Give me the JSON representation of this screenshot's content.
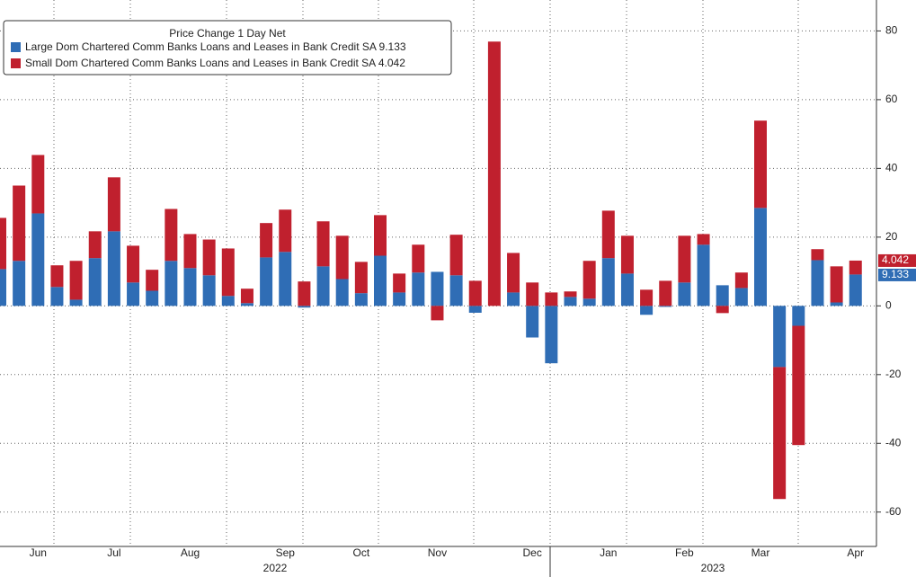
{
  "chart_data": {
    "type": "stacked_bar",
    "legend_title": "Price Change 1 Day Net",
    "categories": [
      null,
      null,
      "Jun",
      null,
      null,
      null,
      "Jul",
      null,
      null,
      null,
      "Aug",
      null,
      null,
      null,
      null,
      "Sep",
      null,
      null,
      null,
      "Oct",
      null,
      null,
      null,
      "Nov",
      null,
      null,
      null,
      null,
      "Dec",
      null,
      null,
      null,
      "Jan",
      null,
      null,
      null,
      "Feb",
      null,
      null,
      null,
      "Mar",
      null,
      null,
      null,
      null,
      "Apr"
    ],
    "years": [
      "2022",
      "2023"
    ],
    "series": [
      {
        "name": "Large Dom Chartered Comm Banks Loans and Leases in Bank Credit SA 9.133",
        "color": "#2f6db5",
        "values": [
          10.7,
          13.1,
          26.9,
          5.5,
          1.8,
          13.9,
          21.7,
          6.8,
          4.4,
          13.1,
          11.0,
          8.9,
          2.9,
          0.8,
          14.1,
          15.7,
          -0.5,
          11.5,
          7.8,
          3.7,
          14.6,
          3.9,
          9.7,
          9.9,
          8.9,
          -2.0,
          0,
          3.9,
          -9.2,
          -16.7,
          2.6,
          2.1,
          13.9,
          9.4,
          -2.6,
          -0.3,
          6.8,
          17.8,
          6.0,
          5.2,
          28.5,
          -17.8,
          -5.8,
          13.3,
          1.0,
          9.133
        ]
      },
      {
        "name": "Small Dom Chartered Comm Banks Loans and Leases in Bank Credit SA 4.042",
        "color": "#c0202e",
        "values": [
          14.9,
          21.9,
          17.0,
          6.3,
          11.3,
          7.8,
          15.7,
          10.7,
          6.1,
          15.1,
          9.9,
          10.4,
          13.8,
          4.2,
          10.0,
          12.3,
          7.1,
          13.1,
          12.6,
          9.1,
          11.8,
          5.5,
          8.1,
          -4.2,
          11.8,
          7.3,
          76.9,
          11.5,
          6.8,
          3.9,
          1.6,
          11.0,
          13.8,
          11.0,
          4.7,
          7.3,
          13.6,
          3.1,
          -2.1,
          4.5,
          25.4,
          -38.4,
          -34.7,
          3.2,
          10.5,
          4.042
        ]
      }
    ],
    "ylim": [
      -70,
      89
    ],
    "yticks": [
      -60,
      -40,
      -20,
      0,
      20,
      40,
      60,
      80
    ],
    "grid": true
  }
}
